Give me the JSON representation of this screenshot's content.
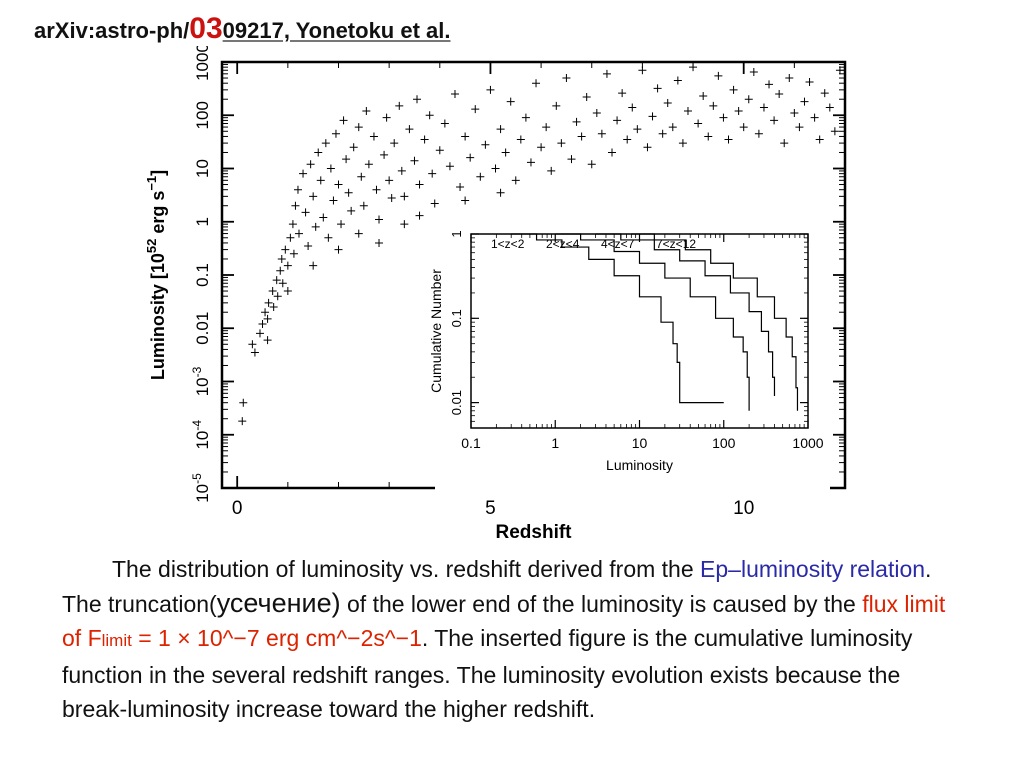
{
  "header": {
    "prefix": "arXiv:astro-ph/",
    "highlight": "03",
    "suffix": "09217, Yonetoku et al."
  },
  "caption": {
    "t1": "The distribution of luminosity vs. redshift derived from the ",
    "t2": "Ep–luminosity relation",
    "t3": ". The truncation(",
    "t4": "усечение)",
    "t5": " of the lower end of the luminosity is caused by the ",
    "t6": "flux limit of F",
    "t7": "limit",
    "t8": " = 1 × 10^−7 erg cm^−2s^−1",
    "t9": ". The inserted figure is the cumulative luminosity function in the several redshift ranges. The luminosity evolution exists because the break-luminosity increase toward the higher redshift."
  },
  "chart_data": [
    {
      "type": "scatter",
      "marker": "+",
      "xlabel": "Redshift",
      "ylabel": "Luminosity [10^52 erg s^-1]",
      "xlim": [
        -0.3,
        12
      ],
      "ylim": [
        1e-05,
        1000
      ],
      "yscale": "log",
      "x_ticks": [
        "0",
        "5",
        "10"
      ],
      "y_ticks": [
        "10^-5",
        "10^-4",
        "10^-3",
        "0.01",
        "0.1",
        "1",
        "10",
        "100",
        "1000"
      ],
      "points": [
        [
          0.12,
          0.0004
        ],
        [
          0.1,
          0.00018
        ],
        [
          0.3,
          0.005
        ],
        [
          0.35,
          0.0035
        ],
        [
          0.45,
          0.008
        ],
        [
          0.5,
          0.012
        ],
        [
          0.55,
          0.02
        ],
        [
          0.6,
          0.015
        ],
        [
          0.62,
          0.03
        ],
        [
          0.7,
          0.05
        ],
        [
          0.72,
          0.025
        ],
        [
          0.78,
          0.08
        ],
        [
          0.8,
          0.04
        ],
        [
          0.85,
          0.12
        ],
        [
          0.88,
          0.2
        ],
        [
          0.9,
          0.07
        ],
        [
          0.95,
          0.3
        ],
        [
          1.0,
          0.15
        ],
        [
          1.05,
          0.5
        ],
        [
          1.1,
          0.9
        ],
        [
          1.12,
          0.25
        ],
        [
          1.15,
          2
        ],
        [
          1.2,
          4
        ],
        [
          1.22,
          0.6
        ],
        [
          1.3,
          8
        ],
        [
          1.35,
          1.5
        ],
        [
          1.4,
          0.35
        ],
        [
          1.45,
          12
        ],
        [
          1.5,
          3
        ],
        [
          1.55,
          0.8
        ],
        [
          1.6,
          20
        ],
        [
          1.65,
          6
        ],
        [
          1.7,
          1.2
        ],
        [
          1.75,
          30
        ],
        [
          1.8,
          0.5
        ],
        [
          1.85,
          10
        ],
        [
          1.9,
          2.5
        ],
        [
          1.95,
          45
        ],
        [
          2.0,
          5
        ],
        [
          2.05,
          0.9
        ],
        [
          2.1,
          80
        ],
        [
          2.15,
          15
        ],
        [
          2.2,
          3.5
        ],
        [
          2.25,
          1.6
        ],
        [
          2.3,
          25
        ],
        [
          2.4,
          60
        ],
        [
          2.45,
          7
        ],
        [
          2.5,
          2
        ],
        [
          2.55,
          120
        ],
        [
          2.6,
          12
        ],
        [
          2.7,
          40
        ],
        [
          2.75,
          4
        ],
        [
          2.8,
          1.1
        ],
        [
          2.9,
          18
        ],
        [
          2.95,
          90
        ],
        [
          3.0,
          6
        ],
        [
          3.05,
          2.8
        ],
        [
          3.1,
          30
        ],
        [
          3.2,
          150
        ],
        [
          3.25,
          9
        ],
        [
          3.3,
          3
        ],
        [
          3.4,
          55
        ],
        [
          3.5,
          14
        ],
        [
          3.55,
          200
        ],
        [
          3.6,
          5
        ],
        [
          3.7,
          35
        ],
        [
          3.8,
          100
        ],
        [
          3.85,
          8
        ],
        [
          3.9,
          2.2
        ],
        [
          4.0,
          22
        ],
        [
          4.1,
          70
        ],
        [
          4.2,
          11
        ],
        [
          4.3,
          250
        ],
        [
          4.4,
          4.5
        ],
        [
          4.5,
          40
        ],
        [
          4.6,
          16
        ],
        [
          4.7,
          130
        ],
        [
          4.8,
          7
        ],
        [
          4.9,
          28
        ],
        [
          5.0,
          300
        ],
        [
          5.1,
          10
        ],
        [
          5.2,
          55
        ],
        [
          5.3,
          20
        ],
        [
          5.4,
          180
        ],
        [
          5.5,
          6
        ],
        [
          5.6,
          35
        ],
        [
          5.7,
          90
        ],
        [
          5.8,
          13
        ],
        [
          5.9,
          400
        ],
        [
          6.0,
          25
        ],
        [
          6.1,
          60
        ],
        [
          6.2,
          9
        ],
        [
          6.3,
          150
        ],
        [
          6.4,
          30
        ],
        [
          6.5,
          500
        ],
        [
          6.6,
          15
        ],
        [
          6.7,
          75
        ],
        [
          6.8,
          40
        ],
        [
          6.9,
          220
        ],
        [
          7.0,
          12
        ],
        [
          7.1,
          110
        ],
        [
          7.2,
          45
        ],
        [
          7.3,
          600
        ],
        [
          7.4,
          20
        ],
        [
          7.5,
          80
        ],
        [
          7.6,
          260
        ],
        [
          7.7,
          35
        ],
        [
          7.8,
          140
        ],
        [
          7.9,
          55
        ],
        [
          8.0,
          700
        ],
        [
          8.1,
          25
        ],
        [
          8.2,
          95
        ],
        [
          8.3,
          320
        ],
        [
          8.4,
          45
        ],
        [
          8.5,
          170
        ],
        [
          8.6,
          60
        ],
        [
          8.7,
          450
        ],
        [
          8.8,
          30
        ],
        [
          8.9,
          120
        ],
        [
          9.0,
          800
        ],
        [
          9.1,
          70
        ],
        [
          9.2,
          230
        ],
        [
          9.3,
          40
        ],
        [
          9.4,
          150
        ],
        [
          9.5,
          550
        ],
        [
          9.6,
          90
        ],
        [
          9.7,
          35
        ],
        [
          9.8,
          300
        ],
        [
          9.9,
          120
        ],
        [
          10.0,
          60
        ],
        [
          10.1,
          200
        ],
        [
          10.2,
          650
        ],
        [
          10.3,
          45
        ],
        [
          10.4,
          140
        ],
        [
          10.5,
          380
        ],
        [
          10.6,
          80
        ],
        [
          10.7,
          250
        ],
        [
          10.8,
          30
        ],
        [
          10.9,
          500
        ],
        [
          11.0,
          110
        ],
        [
          11.1,
          60
        ],
        [
          11.2,
          180
        ],
        [
          11.3,
          420
        ],
        [
          11.4,
          90
        ],
        [
          11.5,
          35
        ],
        [
          11.6,
          260
        ],
        [
          11.7,
          140
        ],
        [
          11.8,
          50
        ],
        [
          11.9,
          700
        ],
        [
          2.0,
          0.3
        ],
        [
          2.4,
          0.6
        ],
        [
          2.8,
          0.4
        ],
        [
          3.3,
          0.9
        ],
        [
          1.5,
          0.15
        ],
        [
          1.0,
          0.05
        ],
        [
          0.6,
          0.006
        ],
        [
          3.6,
          1.3
        ],
        [
          4.5,
          2.5
        ],
        [
          5.2,
          3.5
        ]
      ]
    },
    {
      "type": "line",
      "xlabel": "Luminosity",
      "ylabel": "Cumulative Number",
      "xscale": "log",
      "yscale": "log",
      "xlim": [
        0.1,
        1000
      ],
      "ylim": [
        0.005,
        1
      ],
      "x_ticks": [
        "0.1",
        "1",
        "10",
        "100",
        "1000"
      ],
      "y_ticks": [
        "0.01",
        "0.1",
        "1"
      ],
      "series": [
        {
          "name": "1<z<2",
          "x": [
            0.3,
            0.6,
            1.2,
            2.5,
            5,
            10,
            18,
            25,
            28,
            30,
            100
          ],
          "y": [
            1,
            0.85,
            0.7,
            0.5,
            0.32,
            0.18,
            0.09,
            0.05,
            0.03,
            0.01,
            0.01
          ]
        },
        {
          "name": "2<z<4",
          "x": [
            1,
            2,
            5,
            10,
            20,
            40,
            80,
            130,
            170,
            190,
            200
          ],
          "y": [
            1,
            0.85,
            0.62,
            0.45,
            0.3,
            0.18,
            0.1,
            0.06,
            0.04,
            0.02,
            0.008
          ]
        },
        {
          "name": "4<z<7",
          "x": [
            3,
            6,
            15,
            30,
            60,
            120,
            200,
            280,
            340,
            380,
            400
          ],
          "y": [
            1,
            0.85,
            0.65,
            0.48,
            0.32,
            0.2,
            0.12,
            0.07,
            0.04,
            0.02,
            0.012
          ]
        },
        {
          "name": "7<z<12",
          "x": [
            8,
            15,
            35,
            70,
            130,
            250,
            400,
            550,
            650,
            720,
            750
          ],
          "y": [
            1,
            0.85,
            0.65,
            0.45,
            0.3,
            0.18,
            0.1,
            0.06,
            0.035,
            0.015,
            0.008
          ]
        }
      ]
    }
  ]
}
